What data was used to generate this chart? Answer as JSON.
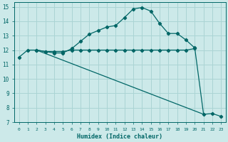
{
  "xlabel": "Humidex (Indice chaleur)",
  "ylabel": "",
  "xlim": [
    -0.5,
    23.5
  ],
  "ylim": [
    7,
    15.3
  ],
  "yticks": [
    7,
    8,
    9,
    10,
    11,
    12,
    13,
    14,
    15
  ],
  "xticks": [
    0,
    1,
    2,
    3,
    4,
    5,
    6,
    7,
    8,
    9,
    10,
    11,
    12,
    13,
    14,
    15,
    16,
    17,
    18,
    19,
    20,
    21,
    22,
    23
  ],
  "bg_color": "#cce9e9",
  "grid_color": "#aad4d4",
  "line_color": "#006666",
  "line1_x": [
    0,
    1,
    2,
    3,
    4,
    5,
    6,
    7,
    8,
    9,
    10,
    11,
    12,
    13,
    14,
    15,
    16,
    17,
    18,
    19,
    20
  ],
  "line1_y": [
    11.5,
    12.0,
    12.0,
    11.9,
    11.9,
    11.9,
    12.0,
    12.0,
    12.0,
    12.0,
    12.0,
    12.0,
    12.0,
    12.0,
    12.0,
    12.0,
    12.0,
    12.0,
    12.0,
    12.0,
    12.1
  ],
  "line2_x": [
    2,
    3,
    4,
    5,
    6,
    7,
    8,
    9,
    10,
    11,
    12,
    13,
    14,
    15,
    16,
    17,
    18,
    19,
    20,
    21,
    22,
    23
  ],
  "line2_y": [
    12.0,
    11.9,
    11.8,
    11.8,
    12.1,
    12.6,
    13.1,
    13.35,
    13.6,
    13.7,
    14.25,
    14.85,
    14.95,
    14.7,
    13.85,
    13.15,
    13.15,
    12.7,
    12.15,
    7.55,
    7.6,
    7.4
  ],
  "line3_x": [
    2,
    21
  ],
  "line3_y": [
    12.0,
    7.55
  ],
  "marker": "D",
  "markersize": 2.2,
  "linewidth": 0.9
}
